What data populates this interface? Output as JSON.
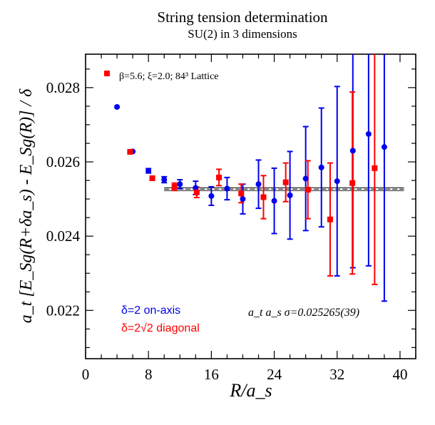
{
  "chart_data": {
    "type": "scatter",
    "title": "String tension determination",
    "subtitle": "SU(2) in 3 dimensions",
    "xlabel": "R/a_s",
    "ylabel": "a_t [E_Sg(R+δa_s) - E_Sg(R)] / δ",
    "xlim": [
      0,
      42
    ],
    "ylim": [
      0.0207,
      0.0289
    ],
    "x_ticks": [
      "0",
      "8",
      "16",
      "24",
      "32",
      "40"
    ],
    "x_tick_values": [
      0,
      8,
      16,
      24,
      32,
      40
    ],
    "y_ticks": [
      "0.022",
      "0.024",
      "0.026",
      "0.028"
    ],
    "y_tick_values": [
      0.022,
      0.024,
      0.026,
      0.028
    ],
    "grid": false,
    "legend": {
      "position": "top-left",
      "marker_color": "#ff0000",
      "text": "β=5.6;  ξ=2.0; 84³ Lattice"
    },
    "annotations": {
      "axis_series_label": "δ=2 on-axis",
      "diag_series_label": "δ=2√2 diagonal",
      "result": "a_t a_s σ=0.025265(39)"
    },
    "fit": {
      "value": 0.025265,
      "error": 3.9e-05,
      "x_from": 10,
      "x_to": 40.5
    },
    "series": [
      {
        "name": "δ=2 on-axis",
        "color": "#0000ee",
        "marker": "circle",
        "points": [
          {
            "x": 4,
            "y": 0.02748,
            "err": 0.0
          },
          {
            "x": 6,
            "y": 0.02628,
            "err": 0.0
          },
          {
            "x": 8,
            "y": 0.02576,
            "err": 6e-05
          },
          {
            "x": 10,
            "y": 0.02552,
            "err": 8e-05
          },
          {
            "x": 12,
            "y": 0.0254,
            "err": 0.00012
          },
          {
            "x": 14,
            "y": 0.0253,
            "err": 0.00018
          },
          {
            "x": 16,
            "y": 0.02508,
            "err": 0.00025
          },
          {
            "x": 18,
            "y": 0.02528,
            "err": 0.0003
          },
          {
            "x": 20,
            "y": 0.025,
            "err": 0.0004
          },
          {
            "x": 22,
            "y": 0.0254,
            "err": 0.00065
          },
          {
            "x": 24,
            "y": 0.02495,
            "err": 0.00088
          },
          {
            "x": 26,
            "y": 0.0251,
            "err": 0.00118
          },
          {
            "x": 28,
            "y": 0.02555,
            "err": 0.0014
          },
          {
            "x": 30,
            "y": 0.02585,
            "err": 0.0016
          },
          {
            "x": 32,
            "y": 0.02548,
            "err": 0.00255
          },
          {
            "x": 34,
            "y": 0.0263,
            "err": 0.00315
          },
          {
            "x": 36,
            "y": 0.02675,
            "err": 0.00355
          },
          {
            "x": 38,
            "y": 0.0264,
            "err": 0.00415
          }
        ]
      },
      {
        "name": "δ=2√2 diagonal",
        "color": "#ff0000",
        "marker": "square",
        "points": [
          {
            "x": 5.66,
            "y": 0.02627,
            "err": 0.0
          },
          {
            "x": 8.49,
            "y": 0.02556,
            "err": 5e-05
          },
          {
            "x": 11.31,
            "y": 0.02533,
            "err": 0.0001
          },
          {
            "x": 14.14,
            "y": 0.02518,
            "err": 0.00014
          },
          {
            "x": 16.97,
            "y": 0.02558,
            "err": 0.00022
          },
          {
            "x": 19.8,
            "y": 0.02515,
            "err": 0.00025
          },
          {
            "x": 22.63,
            "y": 0.02505,
            "err": 0.00058
          },
          {
            "x": 25.46,
            "y": 0.02545,
            "err": 0.00052
          },
          {
            "x": 28.28,
            "y": 0.02525,
            "err": 0.00078
          },
          {
            "x": 31.11,
            "y": 0.02445,
            "err": 0.00152
          },
          {
            "x": 33.94,
            "y": 0.02543,
            "err": 0.00245
          },
          {
            "x": 36.77,
            "y": 0.02583,
            "err": 0.00313
          }
        ]
      }
    ]
  }
}
